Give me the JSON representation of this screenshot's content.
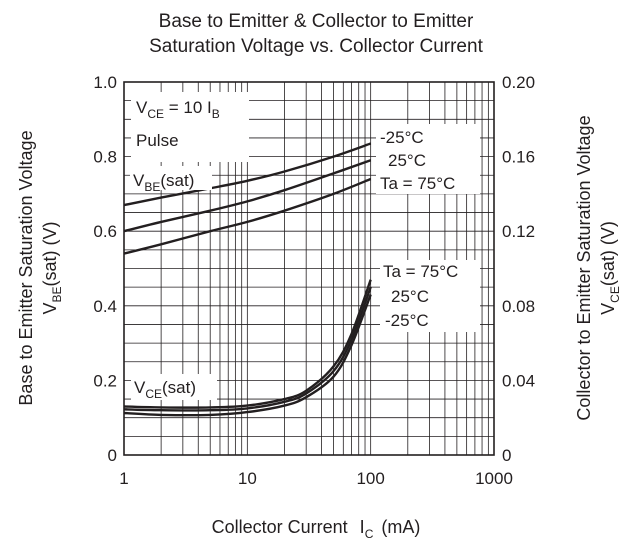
{
  "chart_data": {
    "type": "line",
    "title": [
      "Base to Emitter & Collector to Emitter",
      "Saturation Voltage vs. Collector Current"
    ],
    "xlabel": {
      "main": "Collector Current",
      "symbol": "I",
      "sub": "C",
      "unit": "(mA)"
    },
    "ylabel_left": {
      "main": "Base to Emitter Saturation Voltage",
      "symbol": "V",
      "sub": "BE",
      "suffix": "(sat)  (V)"
    },
    "ylabel_right": {
      "main": "Collector to Emitter Saturation Voltage",
      "symbol": "V",
      "sub": "CE",
      "suffix": "(sat)  (V)"
    },
    "x_scale": "log",
    "xlim": [
      1,
      1000
    ],
    "x_ticks": [
      "1",
      "10",
      "100",
      "1000"
    ],
    "ylim_left": [
      0,
      1.0
    ],
    "y_ticks_left": [
      "0",
      "0.2",
      "0.4",
      "0.6",
      "0.8",
      "1.0"
    ],
    "ylim_right": [
      0,
      0.2
    ],
    "y_ticks_right": [
      "0",
      "0.04",
      "0.08",
      "0.12",
      "0.16",
      "0.20"
    ],
    "grid": true,
    "annotations": {
      "condition": {
        "pre": "V",
        "sub1": "CE",
        "mid": " = 10 I",
        "sub2": "B"
      },
      "pulse": "Pulse",
      "vbe_label": {
        "pre": "V",
        "sub": "BE",
        "post": "(sat)"
      },
      "vce_label": {
        "pre": "V",
        "sub": "CE",
        "post": "(sat)"
      },
      "vbe_temps": [
        "-25°C",
        "25°C",
        "Ta = 75°C"
      ],
      "vce_temps": [
        "Ta = 75°C",
        "25°C",
        "-25°C"
      ]
    },
    "series": [
      {
        "group": "VBE(sat)",
        "axis": "left",
        "temp": "-25°C",
        "x": [
          1,
          2,
          5,
          10,
          20,
          50,
          100
        ],
        "y": [
          0.67,
          0.69,
          0.715,
          0.735,
          0.76,
          0.8,
          0.835
        ]
      },
      {
        "group": "VBE(sat)",
        "axis": "left",
        "temp": "25°C",
        "x": [
          1,
          2,
          5,
          10,
          20,
          50,
          100
        ],
        "y": [
          0.6,
          0.625,
          0.655,
          0.68,
          0.71,
          0.755,
          0.79
        ]
      },
      {
        "group": "VBE(sat)",
        "axis": "left",
        "temp": "Ta = 75°C",
        "x": [
          1,
          2,
          5,
          10,
          20,
          50,
          100
        ],
        "y": [
          0.54,
          0.565,
          0.6,
          0.625,
          0.655,
          0.7,
          0.74
        ]
      },
      {
        "group": "VCE(sat)",
        "axis": "right",
        "temp": "Ta = 75°C",
        "x": [
          1,
          2,
          5,
          10,
          20,
          30,
          50,
          70,
          100
        ],
        "y": [
          0.026,
          0.0255,
          0.0255,
          0.0265,
          0.03,
          0.0345,
          0.0475,
          0.065,
          0.094
        ]
      },
      {
        "group": "VCE(sat)",
        "axis": "right",
        "temp": "25°C",
        "x": [
          1,
          2,
          5,
          10,
          20,
          30,
          50,
          70,
          100
        ],
        "y": [
          0.0245,
          0.024,
          0.024,
          0.025,
          0.0285,
          0.033,
          0.045,
          0.062,
          0.09
        ]
      },
      {
        "group": "VCE(sat)",
        "axis": "right",
        "temp": "-25°C",
        "x": [
          1,
          2,
          5,
          10,
          20,
          30,
          50,
          70,
          100
        ],
        "y": [
          0.0225,
          0.0215,
          0.0215,
          0.023,
          0.0265,
          0.031,
          0.042,
          0.059,
          0.086
        ]
      }
    ]
  }
}
